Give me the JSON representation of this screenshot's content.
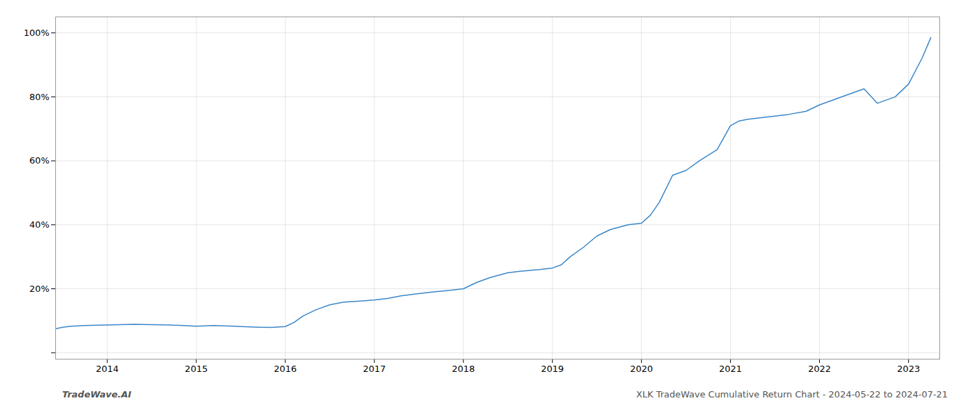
{
  "chart_data": {
    "type": "line",
    "x": [
      2013.42,
      2013.5,
      2013.6,
      2013.75,
      2013.9,
      2014.0,
      2014.15,
      2014.3,
      2014.5,
      2014.7,
      2014.85,
      2015.0,
      2015.1,
      2015.2,
      2015.3,
      2015.42,
      2015.5,
      2015.6,
      2015.7,
      2015.85,
      2016.0,
      2016.1,
      2016.2,
      2016.35,
      2016.5,
      2016.65,
      2016.85,
      2017.0,
      2017.15,
      2017.3,
      2017.5,
      2017.65,
      2017.85,
      2018.0,
      2018.15,
      2018.3,
      2018.5,
      2018.65,
      2018.85,
      2019.0,
      2019.1,
      2019.2,
      2019.35,
      2019.5,
      2019.65,
      2019.85,
      2020.0,
      2020.1,
      2020.2,
      2020.35,
      2020.5,
      2020.65,
      2020.85,
      2021.0,
      2021.1,
      2021.2,
      2021.35,
      2021.5,
      2021.65,
      2021.85,
      2022.0,
      2022.15,
      2022.3,
      2022.5,
      2022.65,
      2022.85,
      2023.0,
      2023.15,
      2023.25
    ],
    "values": [
      7.5,
      8.0,
      8.3,
      8.5,
      8.6,
      8.7,
      8.8,
      8.9,
      8.8,
      8.7,
      8.5,
      8.3,
      8.4,
      8.5,
      8.4,
      8.3,
      8.2,
      8.1,
      8.0,
      7.9,
      8.2,
      9.5,
      11.5,
      13.5,
      15.0,
      15.8,
      16.2,
      16.5,
      17.0,
      17.8,
      18.5,
      19.0,
      19.5,
      20.0,
      22.0,
      23.5,
      25.0,
      25.5,
      26.0,
      26.5,
      27.5,
      30.0,
      33.0,
      36.5,
      38.5,
      40.0,
      40.5,
      43.0,
      47.0,
      55.5,
      57.0,
      60.0,
      63.5,
      71.0,
      72.5,
      73.0,
      73.5,
      74.0,
      74.5,
      75.5,
      77.5,
      79.0,
      80.5,
      82.5,
      78.0,
      80.0,
      84.0,
      92.0,
      98.5
    ],
    "color": "#3a86c8",
    "xlim": [
      2013.42,
      2023.35
    ],
    "xticks": [
      2014,
      2015,
      2016,
      2017,
      2018,
      2019,
      2020,
      2021,
      2022,
      2023
    ],
    "ylim": [
      -2,
      105
    ],
    "yticks": [
      {
        "value": 0,
        "label": null
      },
      {
        "value": 20,
        "label": "20%"
      },
      {
        "value": 40,
        "label": "40%"
      },
      {
        "value": 60,
        "label": "60%"
      },
      {
        "value": 80,
        "label": "80%"
      },
      {
        "value": 100,
        "label": "100%"
      }
    ],
    "grid": true,
    "annotations": [
      "TradeWave.AI",
      "XLK TradeWave Cumulative Return Chart - 2024-05-22 to 2024-07-21"
    ]
  }
}
